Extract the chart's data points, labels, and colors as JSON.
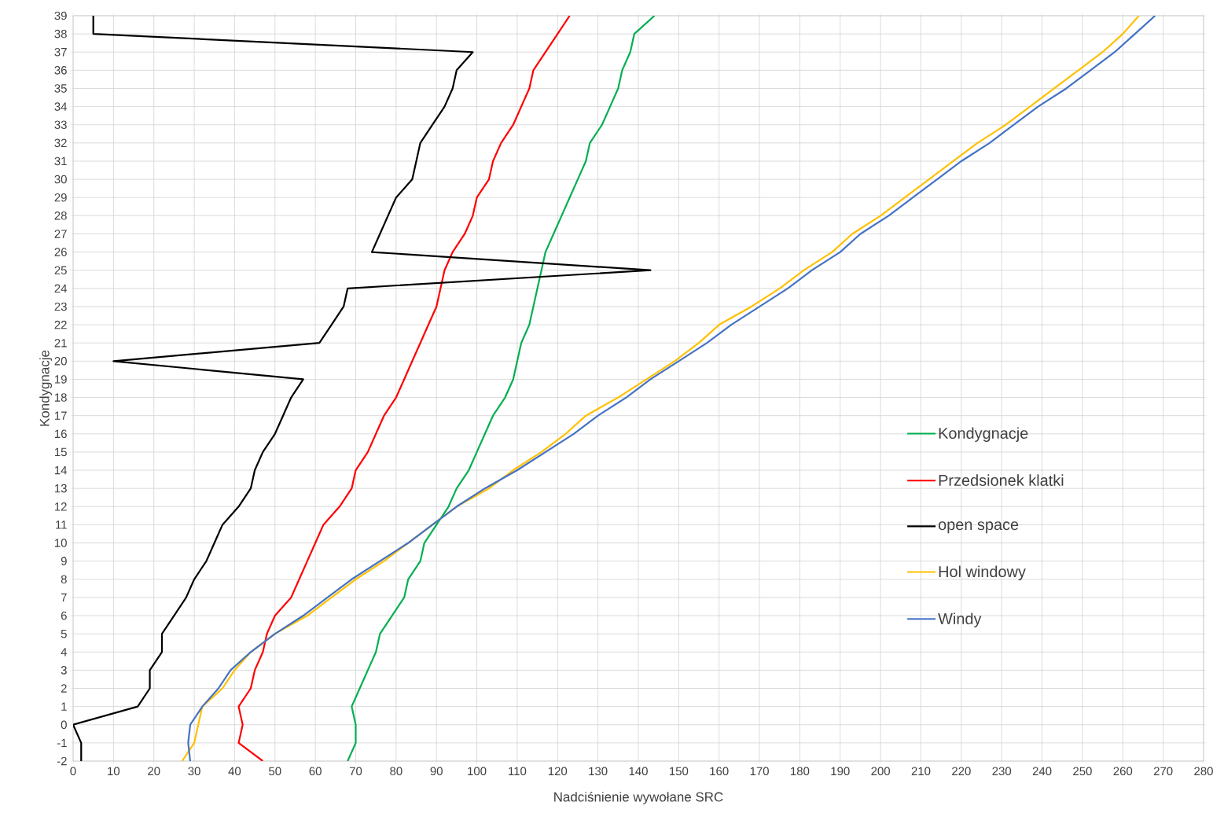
{
  "chart_data": {
    "type": "line",
    "xlabel": "Nadciśnienie wywołane SRC",
    "ylabel": "Kondygnacje",
    "xlim": [
      0,
      280
    ],
    "xticks": [
      0,
      10,
      20,
      30,
      40,
      50,
      60,
      70,
      80,
      90,
      100,
      110,
      120,
      130,
      140,
      150,
      160,
      170,
      180,
      190,
      200,
      210,
      220,
      230,
      240,
      250,
      260,
      270,
      280
    ],
    "ylim": [
      -2,
      39
    ],
    "yticks": [
      -2,
      -1,
      0,
      1,
      2,
      3,
      4,
      5,
      6,
      7,
      8,
      9,
      10,
      11,
      12,
      13,
      14,
      15,
      16,
      17,
      18,
      19,
      20,
      21,
      22,
      23,
      24,
      25,
      26,
      27,
      28,
      29,
      30,
      31,
      32,
      33,
      34,
      35,
      36,
      37,
      38,
      39
    ],
    "grid": true,
    "legend": "right",
    "marker": "none",
    "line_style": "solid",
    "series": [
      {
        "name": "Kondygnacje",
        "color": "#00b050",
        "x": [
          68,
          70,
          70,
          69,
          71,
          73,
          75,
          76,
          79,
          82,
          83,
          86,
          87,
          90,
          93,
          95,
          98,
          100,
          102,
          104,
          107,
          109,
          110,
          111,
          113,
          114,
          115,
          116,
          117,
          119,
          121,
          123,
          125,
          127,
          128,
          131,
          133,
          135,
          136,
          138,
          139,
          144
        ],
        "values": [
          -2,
          -1,
          0,
          1,
          2,
          3,
          4,
          5,
          6,
          7,
          8,
          9,
          10,
          11,
          12,
          13,
          14,
          15,
          16,
          17,
          18,
          19,
          20,
          21,
          22,
          23,
          24,
          25,
          26,
          27,
          28,
          29,
          30,
          31,
          32,
          33,
          34,
          35,
          36,
          37,
          38,
          39
        ]
      },
      {
        "name": "Przedsionek klatki",
        "color": "#ff0000",
        "x": [
          47,
          41,
          42,
          41,
          44,
          45,
          47,
          48,
          50,
          54,
          56,
          58,
          60,
          62,
          66,
          69,
          70,
          73,
          75,
          77,
          80,
          82,
          84,
          86,
          88,
          90,
          91,
          92,
          94,
          97,
          99,
          100,
          103,
          104,
          106,
          109,
          111,
          113,
          114,
          117,
          120,
          123
        ],
        "values": [
          -2,
          -1,
          0,
          1,
          2,
          3,
          4,
          5,
          6,
          7,
          8,
          9,
          10,
          11,
          12,
          13,
          14,
          15,
          16,
          17,
          18,
          19,
          20,
          21,
          22,
          23,
          24,
          25,
          26,
          27,
          28,
          29,
          30,
          31,
          32,
          33,
          34,
          35,
          36,
          37,
          38,
          39
        ]
      },
      {
        "name": "open space",
        "color": "#000000",
        "x": [
          2,
          2,
          0,
          16,
          19,
          19,
          22,
          22,
          25,
          28,
          30,
          33,
          35,
          37,
          41,
          44,
          45,
          47,
          50,
          52,
          54,
          57,
          10,
          61,
          64,
          67,
          68,
          143,
          74,
          76,
          78,
          80,
          84,
          85,
          86,
          89,
          92,
          94,
          95,
          99,
          5,
          5
        ],
        "values": [
          -2,
          -1,
          0,
          1,
          2,
          3,
          4,
          5,
          6,
          7,
          8,
          9,
          10,
          11,
          12,
          13,
          14,
          15,
          16,
          17,
          18,
          19,
          20,
          21,
          22,
          23,
          24,
          25,
          26,
          27,
          28,
          29,
          30,
          31,
          32,
          33,
          34,
          35,
          36,
          37,
          38,
          39
        ]
      },
      {
        "name": "Hol windowy",
        "color": "#ffc000",
        "x": [
          27,
          30,
          31,
          32,
          37,
          40,
          44,
          50,
          58,
          64,
          70,
          77,
          83,
          89,
          95,
          103,
          109,
          116,
          122,
          127,
          135,
          142,
          149,
          155,
          160,
          168,
          175,
          181,
          188,
          193,
          200,
          206,
          212,
          218,
          224,
          231,
          237,
          243,
          249,
          255,
          260,
          264
        ],
        "values": [
          -2,
          -1,
          0,
          1,
          2,
          3,
          4,
          5,
          6,
          7,
          8,
          9,
          10,
          11,
          12,
          13,
          14,
          15,
          16,
          17,
          18,
          19,
          20,
          21,
          22,
          23,
          24,
          25,
          26,
          27,
          28,
          29,
          30,
          31,
          32,
          33,
          34,
          35,
          36,
          37,
          38,
          39
        ]
      },
      {
        "name": "Windy",
        "color": "#4472c4",
        "x": [
          29,
          28.5,
          29,
          32,
          36,
          39,
          44,
          50,
          57,
          63,
          69,
          76,
          83,
          89,
          95,
          102,
          110,
          117,
          124,
          130,
          137,
          143,
          150,
          157,
          163,
          170,
          177,
          183,
          190,
          195,
          202,
          208,
          214,
          220,
          227,
          233,
          239,
          246,
          252,
          258,
          263,
          268
        ],
        "values": [
          -2,
          -1,
          0,
          1,
          2,
          3,
          4,
          5,
          6,
          7,
          8,
          9,
          10,
          11,
          12,
          13,
          14,
          15,
          16,
          17,
          18,
          19,
          20,
          21,
          22,
          23,
          24,
          25,
          26,
          27,
          28,
          29,
          30,
          31,
          32,
          33,
          34,
          35,
          36,
          37,
          38,
          39
        ]
      }
    ]
  }
}
